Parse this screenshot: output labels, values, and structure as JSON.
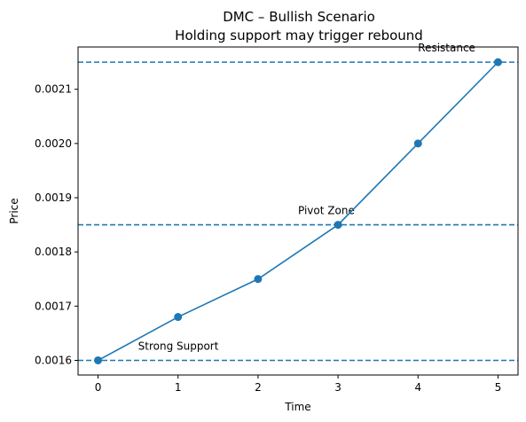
{
  "chart_data": {
    "type": "line",
    "title": "DMC – Bullish Scenario",
    "subtitle": "Holding support may trigger rebound",
    "xlabel": "Time",
    "ylabel": "Price",
    "x": [
      0,
      1,
      2,
      3,
      4,
      5
    ],
    "series": [
      {
        "values": [
          0.0016,
          0.00168,
          0.00175,
          0.00185,
          0.002,
          0.00215
        ]
      }
    ],
    "xlim": [
      -0.25,
      5.25
    ],
    "ylim": [
      0.001573,
      0.002178
    ],
    "xticks": [
      "0",
      "1",
      "2",
      "3",
      "4",
      "5"
    ],
    "yticks": [
      "0.0016",
      "0.0017",
      "0.0018",
      "0.0019",
      "0.0020",
      "0.0021"
    ],
    "ytick_values": [
      0.0016,
      0.0017,
      0.0018,
      0.0019,
      0.002,
      0.0021
    ],
    "grid": false,
    "reference_lines": [
      {
        "label": "Strong Support",
        "y": 0.0016,
        "label_x": 0.5
      },
      {
        "label": "Pivot Zone",
        "y": 0.00185,
        "label_x": 2.5
      },
      {
        "label": "Resistance",
        "y": 0.00215,
        "label_x": 4.0
      }
    ],
    "colors": {
      "series": "#1f77b4",
      "reference": "#1f77b4"
    }
  }
}
